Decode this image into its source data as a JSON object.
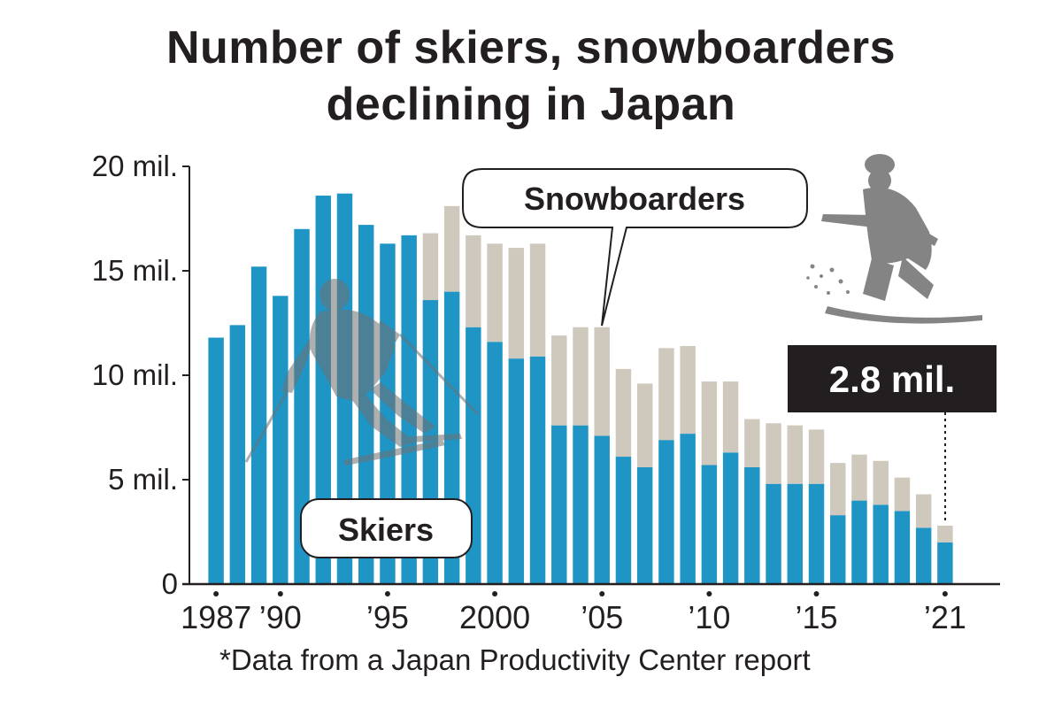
{
  "title_lines": [
    "Number of skiers, snowboarders",
    "declining in Japan"
  ],
  "footnote": "*Data from a Japan Productivity Center report",
  "colors": {
    "skiers": "#1f95c6",
    "snowboarders": "#cfc8bd",
    "silhouette": "#6f6f6f",
    "text": "#231f20",
    "highlight_box": "#231f20"
  },
  "chart_data": {
    "type": "bar",
    "stacked": true,
    "x": [
      1987,
      1988,
      1989,
      1990,
      1991,
      1992,
      1993,
      1994,
      1995,
      1996,
      1997,
      1998,
      1999,
      2000,
      2001,
      2002,
      2003,
      2004,
      2005,
      2006,
      2007,
      2008,
      2009,
      2010,
      2011,
      2012,
      2013,
      2014,
      2015,
      2016,
      2017,
      2018,
      2019,
      2020,
      2021
    ],
    "series": [
      {
        "name": "Skiers",
        "values": [
          11.8,
          12.4,
          15.2,
          13.8,
          17.0,
          18.6,
          18.7,
          17.2,
          16.3,
          16.7,
          13.6,
          14.0,
          12.3,
          11.6,
          10.8,
          10.9,
          7.6,
          7.6,
          7.1,
          6.1,
          5.6,
          6.9,
          7.2,
          5.7,
          6.3,
          5.6,
          4.8,
          4.8,
          4.8,
          3.3,
          4.0,
          3.8,
          3.5,
          2.7,
          2.0
        ]
      },
      {
        "name": "Snowboarders",
        "values": [
          0,
          0,
          0,
          0,
          0,
          0,
          0,
          0,
          0,
          0,
          3.2,
          4.1,
          4.4,
          4.7,
          5.3,
          5.4,
          4.3,
          4.7,
          5.2,
          4.2,
          4.0,
          4.4,
          4.2,
          4.0,
          3.4,
          2.3,
          2.9,
          2.8,
          2.6,
          2.5,
          2.2,
          2.1,
          1.6,
          1.6,
          0.8
        ]
      }
    ],
    "y_unit": "mil.",
    "ylim": [
      0,
      20
    ],
    "y_ticks": [
      0,
      5,
      10,
      15,
      20
    ],
    "y_tick_labels": [
      "0",
      "5 mil.",
      "10 mil.",
      "15 mil.",
      "20 mil."
    ],
    "x_ticks": [
      1987,
      1990,
      1995,
      2000,
      2005,
      2010,
      2015,
      2021
    ],
    "x_tick_labels": [
      "1987",
      "’90",
      "’95",
      "2000",
      "’05",
      "’10",
      "’15",
      "’21"
    ],
    "callouts": {
      "skiers": "Skiers",
      "snowboarders": "Snowboarders",
      "final_value": "2.8 mil."
    },
    "grid": false
  }
}
